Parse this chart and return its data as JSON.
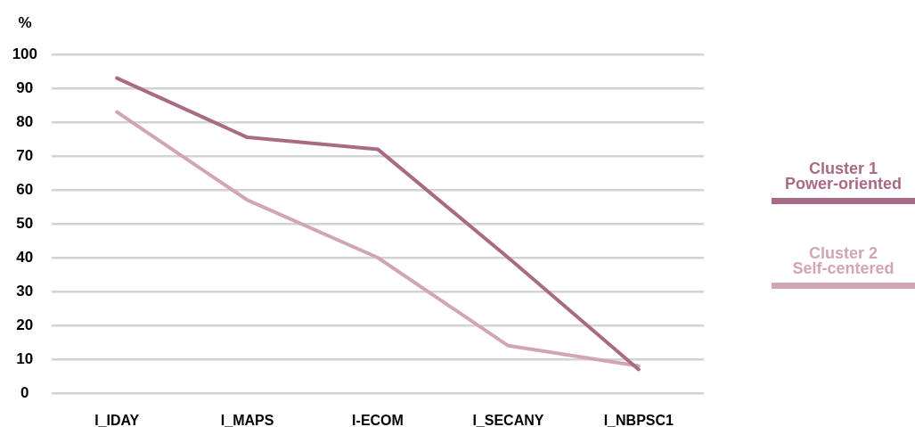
{
  "chart_data": {
    "type": "line",
    "ylabel": "%",
    "categories": [
      "I_IDAY",
      "I_MAPS",
      "I-ECOM",
      "I_SECANY",
      "I_NBPSC1"
    ],
    "series": [
      {
        "name": "Cluster 1\nPower-oriented",
        "color": "#a86a84",
        "values": [
          93,
          75.5,
          72,
          40,
          7
        ]
      },
      {
        "name": "Cluster 2\nSelf-centered",
        "color": "#d2a5b5",
        "values": [
          83,
          57,
          40,
          14,
          8
        ]
      }
    ],
    "ylim": [
      0,
      100
    ],
    "yticks": [
      0,
      10,
      20,
      30,
      40,
      50,
      60,
      70,
      80,
      90,
      100
    ],
    "grid": "y",
    "legend": "right",
    "marker": "none"
  }
}
